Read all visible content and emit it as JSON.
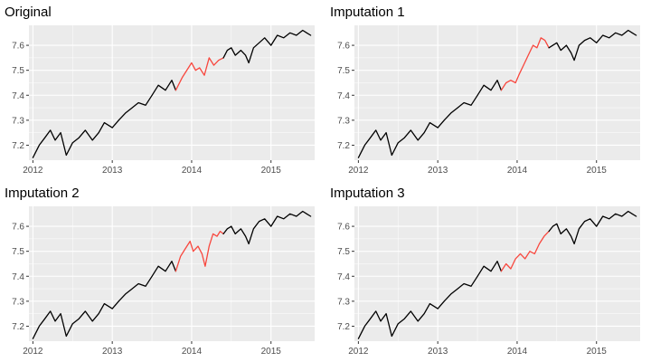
{
  "colors": {
    "observed": "#000000",
    "imputed": "#f8473e",
    "panel_background": "#ebebeb",
    "grid": "#ffffff",
    "tick_text": "#4d4d4d"
  },
  "chart_data": [
    {
      "type": "line",
      "title": "Original",
      "xlabel": "",
      "ylabel": "",
      "x_ticks": [
        2012,
        2013,
        2014,
        2015
      ],
      "x_tick_labels": [
        "2012",
        "2013",
        "2014",
        "2015"
      ],
      "y_ticks": [
        7.2,
        7.3,
        7.4,
        7.5,
        7.6
      ],
      "y_tick_labels": [
        "7.2",
        "7.3",
        "7.4",
        "7.5",
        "7.6"
      ],
      "xlim": [
        2011.95,
        2015.55
      ],
      "ylim": [
        7.14,
        7.68
      ],
      "grid": true,
      "legend": "none",
      "series": [
        {
          "color": "#000000",
          "x": [
            2012.0,
            2012.08,
            2012.15,
            2012.22,
            2012.28,
            2012.35,
            2012.42,
            2012.5,
            2012.58,
            2012.66,
            2012.75,
            2012.83,
            2012.9,
            2013.0,
            2013.08,
            2013.17,
            2013.25,
            2013.33,
            2013.42,
            2013.5,
            2013.58,
            2013.67,
            2013.75,
            2013.8
          ],
          "y": [
            7.15,
            7.2,
            7.23,
            7.26,
            7.22,
            7.25,
            7.16,
            7.21,
            7.23,
            7.26,
            7.22,
            7.25,
            7.29,
            7.27,
            7.3,
            7.33,
            7.35,
            7.37,
            7.36,
            7.4,
            7.44,
            7.42,
            7.46,
            7.42
          ]
        },
        {
          "color": "#f8473e",
          "x": [
            2013.8,
            2013.88,
            2013.96,
            2014.0,
            2014.05,
            2014.1,
            2014.16,
            2014.22,
            2014.28,
            2014.34,
            2014.4
          ],
          "y": [
            7.42,
            7.47,
            7.51,
            7.53,
            7.5,
            7.51,
            7.48,
            7.55,
            7.52,
            7.54,
            7.55
          ]
        },
        {
          "color": "#000000",
          "x": [
            2014.4,
            2014.45,
            2014.5,
            2014.55,
            2014.62,
            2014.68,
            2014.72,
            2014.78,
            2014.85,
            2014.92,
            2015.0,
            2015.08,
            2015.16,
            2015.24,
            2015.32,
            2015.4,
            2015.45,
            2015.5
          ],
          "y": [
            7.55,
            7.58,
            7.59,
            7.56,
            7.58,
            7.56,
            7.53,
            7.59,
            7.61,
            7.63,
            7.6,
            7.64,
            7.63,
            7.65,
            7.64,
            7.66,
            7.65,
            7.64
          ]
        }
      ]
    },
    {
      "type": "line",
      "title": "Imputation 1",
      "xlabel": "",
      "ylabel": "",
      "x_ticks": [
        2012,
        2013,
        2014,
        2015
      ],
      "x_tick_labels": [
        "2012",
        "2013",
        "2014",
        "2015"
      ],
      "y_ticks": [
        7.2,
        7.3,
        7.4,
        7.5,
        7.6
      ],
      "y_tick_labels": [
        "7.2",
        "7.3",
        "7.4",
        "7.5",
        "7.6"
      ],
      "xlim": [
        2011.95,
        2015.55
      ],
      "ylim": [
        7.14,
        7.68
      ],
      "grid": true,
      "legend": "none",
      "series": [
        {
          "color": "#000000",
          "x": [
            2012.0,
            2012.08,
            2012.15,
            2012.22,
            2012.28,
            2012.35,
            2012.42,
            2012.5,
            2012.58,
            2012.66,
            2012.75,
            2012.83,
            2012.9,
            2013.0,
            2013.08,
            2013.17,
            2013.25,
            2013.33,
            2013.42,
            2013.5,
            2013.58,
            2013.67,
            2013.75,
            2013.8
          ],
          "y": [
            7.15,
            7.2,
            7.23,
            7.26,
            7.22,
            7.25,
            7.16,
            7.21,
            7.23,
            7.26,
            7.22,
            7.25,
            7.29,
            7.27,
            7.3,
            7.33,
            7.35,
            7.37,
            7.36,
            7.4,
            7.44,
            7.42,
            7.46,
            7.42
          ]
        },
        {
          "color": "#f8473e",
          "x": [
            2013.8,
            2013.86,
            2013.92,
            2013.98,
            2014.02,
            2014.08,
            2014.14,
            2014.2,
            2014.25,
            2014.3,
            2014.35,
            2014.4
          ],
          "y": [
            7.42,
            7.45,
            7.46,
            7.45,
            7.48,
            7.52,
            7.56,
            7.6,
            7.59,
            7.63,
            7.62,
            7.59
          ]
        },
        {
          "color": "#000000",
          "x": [
            2014.4,
            2014.45,
            2014.5,
            2014.55,
            2014.62,
            2014.68,
            2014.72,
            2014.78,
            2014.85,
            2014.92,
            2015.0,
            2015.08,
            2015.16,
            2015.24,
            2015.32,
            2015.4,
            2015.45,
            2015.5
          ],
          "y": [
            7.59,
            7.6,
            7.61,
            7.58,
            7.6,
            7.57,
            7.54,
            7.6,
            7.62,
            7.63,
            7.61,
            7.64,
            7.63,
            7.65,
            7.64,
            7.66,
            7.65,
            7.64
          ]
        }
      ]
    },
    {
      "type": "line",
      "title": "Imputation 2",
      "xlabel": "",
      "ylabel": "",
      "x_ticks": [
        2012,
        2013,
        2014,
        2015
      ],
      "x_tick_labels": [
        "2012",
        "2013",
        "2014",
        "2015"
      ],
      "y_ticks": [
        7.2,
        7.3,
        7.4,
        7.5,
        7.6
      ],
      "y_tick_labels": [
        "7.2",
        "7.3",
        "7.4",
        "7.5",
        "7.6"
      ],
      "xlim": [
        2011.95,
        2015.55
      ],
      "ylim": [
        7.14,
        7.68
      ],
      "grid": true,
      "legend": "none",
      "series": [
        {
          "color": "#000000",
          "x": [
            2012.0,
            2012.08,
            2012.15,
            2012.22,
            2012.28,
            2012.35,
            2012.42,
            2012.5,
            2012.58,
            2012.66,
            2012.75,
            2012.83,
            2012.9,
            2013.0,
            2013.08,
            2013.17,
            2013.25,
            2013.33,
            2013.42,
            2013.5,
            2013.58,
            2013.67,
            2013.75,
            2013.8
          ],
          "y": [
            7.15,
            7.2,
            7.23,
            7.26,
            7.22,
            7.25,
            7.16,
            7.21,
            7.23,
            7.26,
            7.22,
            7.25,
            7.29,
            7.27,
            7.3,
            7.33,
            7.35,
            7.37,
            7.36,
            7.4,
            7.44,
            7.42,
            7.46,
            7.42
          ]
        },
        {
          "color": "#f8473e",
          "x": [
            2013.8,
            2013.86,
            2013.92,
            2013.98,
            2014.02,
            2014.08,
            2014.13,
            2014.17,
            2014.22,
            2014.27,
            2014.32,
            2014.36,
            2014.4
          ],
          "y": [
            7.42,
            7.48,
            7.51,
            7.54,
            7.5,
            7.52,
            7.49,
            7.44,
            7.52,
            7.57,
            7.56,
            7.58,
            7.57
          ]
        },
        {
          "color": "#000000",
          "x": [
            2014.4,
            2014.45,
            2014.5,
            2014.55,
            2014.62,
            2014.68,
            2014.72,
            2014.78,
            2014.85,
            2014.92,
            2015.0,
            2015.08,
            2015.16,
            2015.24,
            2015.32,
            2015.4,
            2015.45,
            2015.5
          ],
          "y": [
            7.57,
            7.59,
            7.6,
            7.57,
            7.59,
            7.56,
            7.53,
            7.59,
            7.62,
            7.63,
            7.6,
            7.64,
            7.63,
            7.65,
            7.64,
            7.66,
            7.65,
            7.64
          ]
        }
      ]
    },
    {
      "type": "line",
      "title": "Imputation 3",
      "xlabel": "",
      "ylabel": "",
      "x_ticks": [
        2012,
        2013,
        2014,
        2015
      ],
      "x_tick_labels": [
        "2012",
        "2013",
        "2014",
        "2015"
      ],
      "y_ticks": [
        7.2,
        7.3,
        7.4,
        7.5,
        7.6
      ],
      "y_tick_labels": [
        "7.2",
        "7.3",
        "7.4",
        "7.5",
        "7.6"
      ],
      "xlim": [
        2011.95,
        2015.55
      ],
      "ylim": [
        7.14,
        7.68
      ],
      "grid": true,
      "legend": "none",
      "series": [
        {
          "color": "#000000",
          "x": [
            2012.0,
            2012.08,
            2012.15,
            2012.22,
            2012.28,
            2012.35,
            2012.42,
            2012.5,
            2012.58,
            2012.66,
            2012.75,
            2012.83,
            2012.9,
            2013.0,
            2013.08,
            2013.17,
            2013.25,
            2013.33,
            2013.42,
            2013.5,
            2013.58,
            2013.67,
            2013.75,
            2013.8
          ],
          "y": [
            7.15,
            7.2,
            7.23,
            7.26,
            7.22,
            7.25,
            7.16,
            7.21,
            7.23,
            7.26,
            7.22,
            7.25,
            7.29,
            7.27,
            7.3,
            7.33,
            7.35,
            7.37,
            7.36,
            7.4,
            7.44,
            7.42,
            7.46,
            7.42
          ]
        },
        {
          "color": "#f8473e",
          "x": [
            2013.8,
            2013.86,
            2013.92,
            2013.98,
            2014.04,
            2014.1,
            2014.16,
            2014.22,
            2014.28,
            2014.34,
            2014.4
          ],
          "y": [
            7.42,
            7.45,
            7.43,
            7.47,
            7.49,
            7.47,
            7.5,
            7.49,
            7.53,
            7.56,
            7.58
          ]
        },
        {
          "color": "#000000",
          "x": [
            2014.4,
            2014.45,
            2014.5,
            2014.55,
            2014.62,
            2014.68,
            2014.72,
            2014.78,
            2014.85,
            2014.92,
            2015.0,
            2015.08,
            2015.16,
            2015.24,
            2015.32,
            2015.4,
            2015.45,
            2015.5
          ],
          "y": [
            7.58,
            7.6,
            7.61,
            7.57,
            7.59,
            7.56,
            7.53,
            7.59,
            7.62,
            7.63,
            7.6,
            7.64,
            7.63,
            7.65,
            7.64,
            7.66,
            7.65,
            7.64
          ]
        }
      ]
    }
  ]
}
